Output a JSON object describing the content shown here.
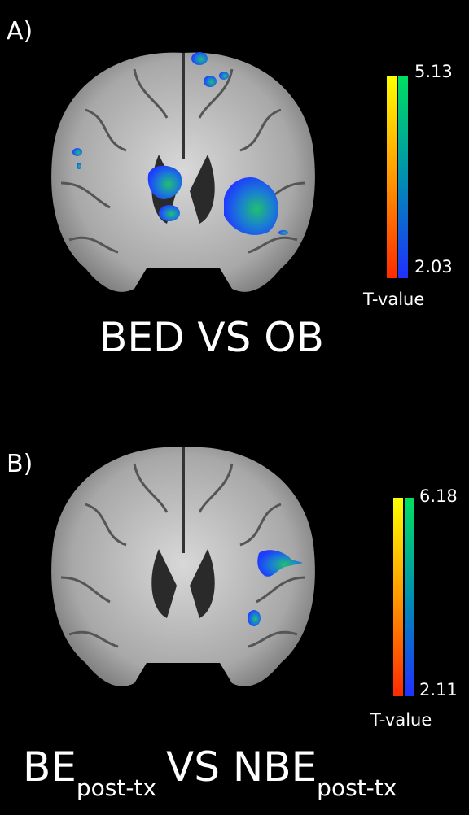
{
  "panels": [
    {
      "label": "A)",
      "scale_max": "5.13",
      "scale_min": "2.03",
      "scale_title": "T-value",
      "caption": [
        "BED VS OB"
      ]
    },
    {
      "label": "B)",
      "scale_max": "6.18",
      "scale_min": "2.11",
      "scale_title": "T-value",
      "caption": [
        "BE",
        "post-tx",
        "VS NBE",
        "post-tx"
      ]
    }
  ]
}
